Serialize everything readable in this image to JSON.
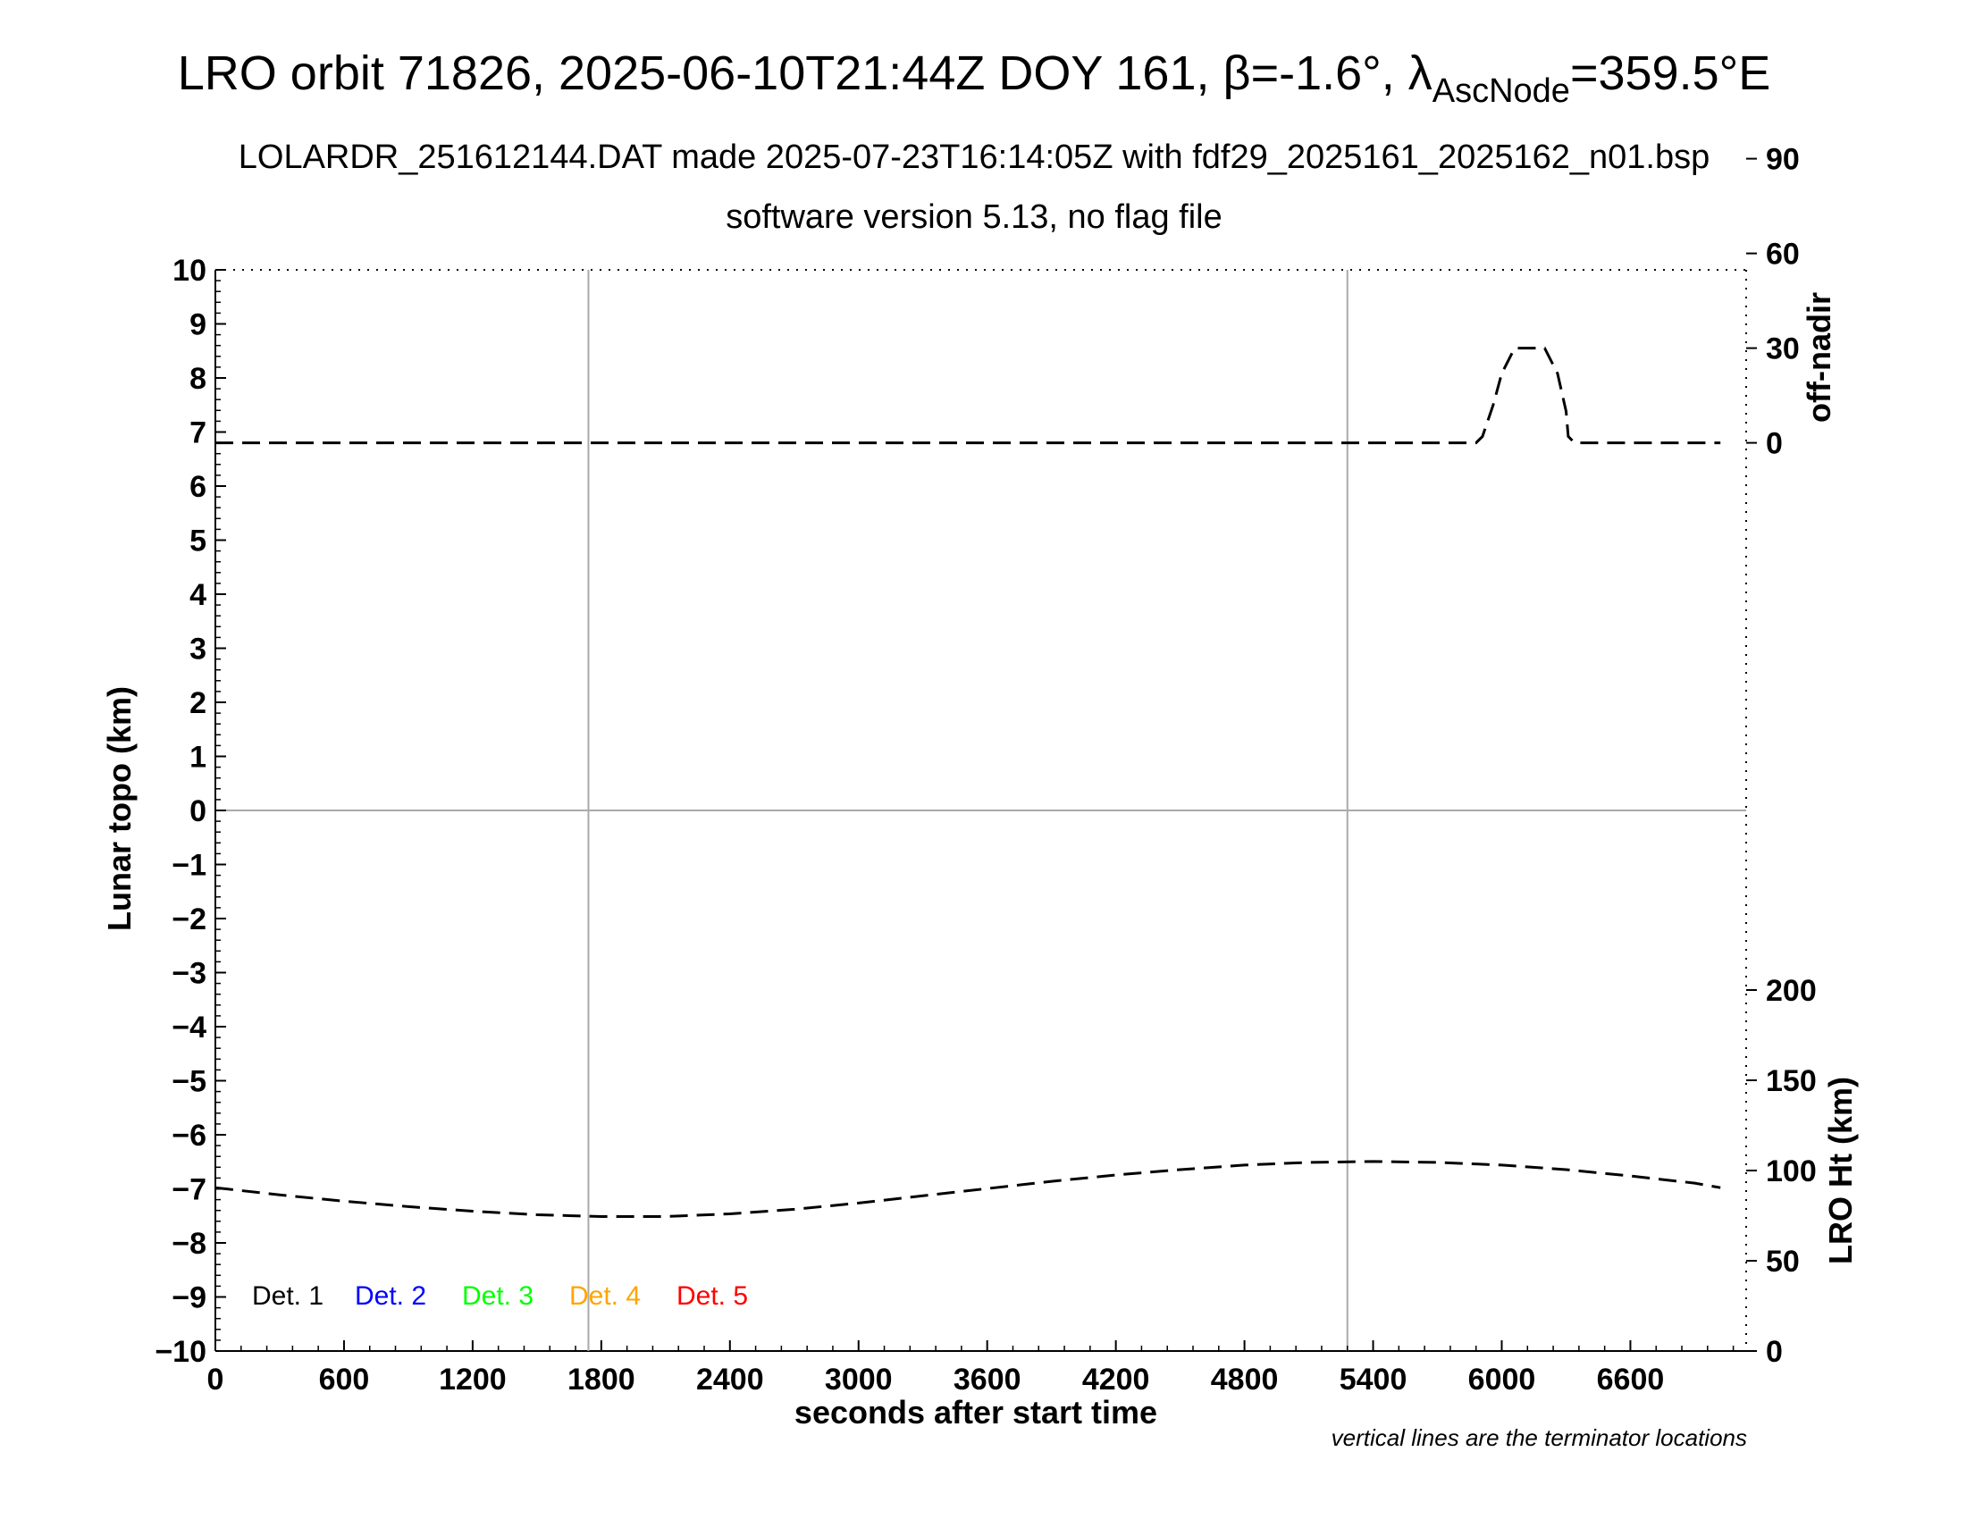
{
  "title": {
    "prefix": "LRO orbit 71826, 2025-06-10T21:44Z DOY 161, ",
    "beta_symbol": "β",
    "beta_value": "=-1.6°, ",
    "lambda_symbol": "λ",
    "lambda_subscript": "AscNode",
    "lambda_value": "=359.5°E"
  },
  "subtitle1": "LOLARDR_251612144.DAT made 2025-07-23T16:14:05Z with fdf29_2025161_2025162_n01.bsp",
  "subtitle2": "software version 5.13, no flag file",
  "note": "vertical lines are the terminator locations",
  "chart_data": {
    "type": "line",
    "xlabel": "seconds after start time",
    "ylabel": "Lunar topo (km)",
    "y2_top_label": "off-nadir",
    "y2_bottom_label": "LRO Ht (km)",
    "xlim": [
      0,
      7140
    ],
    "ylim": [
      -10,
      10
    ],
    "x_ticks": [
      0,
      600,
      1200,
      1800,
      2400,
      3000,
      3600,
      4200,
      4800,
      5400,
      6000,
      6600
    ],
    "y_ticks": [
      -10,
      -9,
      -8,
      -7,
      -6,
      -5,
      -4,
      -3,
      -2,
      -1,
      0,
      1,
      2,
      3,
      4,
      5,
      6,
      7,
      8,
      9,
      10
    ],
    "y_tick_labels": [
      "−10",
      "−9",
      "−8",
      "−7",
      "−6",
      "−5",
      "−4",
      "−3",
      "−2",
      "−1",
      "0",
      "1",
      "2",
      "3",
      "4",
      "5",
      "6",
      "7",
      "8",
      "9",
      "10"
    ],
    "offnadir_ticks": [
      0,
      30,
      60,
      90
    ],
    "lro_ht_ticks": [
      0,
      50,
      100,
      150,
      200
    ],
    "terminator_lines_x": [
      1740,
      5280
    ],
    "grid": false,
    "legend": {
      "placement": "bottom-left",
      "entries": [
        {
          "label": "Det. 1",
          "color": "#000000"
        },
        {
          "label": "Det. 2",
          "color": "#0000ff"
        },
        {
          "label": "Det. 3",
          "color": "#00ff00"
        },
        {
          "label": "Det. 4",
          "color": "#ffa500"
        },
        {
          "label": "Det. 5",
          "color": "#ff0000"
        }
      ]
    },
    "series": [
      {
        "axis": "off-nadir",
        "style": "dashed",
        "color": "#000000",
        "x": [
          0,
          1000,
          1800,
          3000,
          4200,
          5400,
          5880,
          5910,
          5960,
          6000,
          6060,
          6200,
          6260,
          6300,
          6310,
          6340,
          7020
        ],
        "y": [
          0,
          0,
          0,
          0,
          0,
          0,
          0,
          2,
          12,
          22,
          30,
          30,
          22,
          10,
          2,
          0,
          0
        ]
      },
      {
        "axis": "LRO Ht (km)",
        "style": "dashed",
        "color": "#000000",
        "x": [
          0,
          300,
          600,
          900,
          1200,
          1500,
          1800,
          2100,
          2400,
          2700,
          3000,
          3300,
          3600,
          3900,
          4200,
          4500,
          4800,
          5100,
          5400,
          5700,
          6000,
          6300,
          6600,
          6900,
          7020
        ],
        "y": [
          90.5,
          86.5,
          83,
          80,
          77.5,
          75.5,
          74.5,
          74.5,
          76,
          78.5,
          82,
          86,
          90,
          94,
          97.5,
          100.5,
          103,
          104.5,
          105,
          104.5,
          103,
          100.5,
          97,
          93,
          90.5
        ]
      }
    ]
  }
}
